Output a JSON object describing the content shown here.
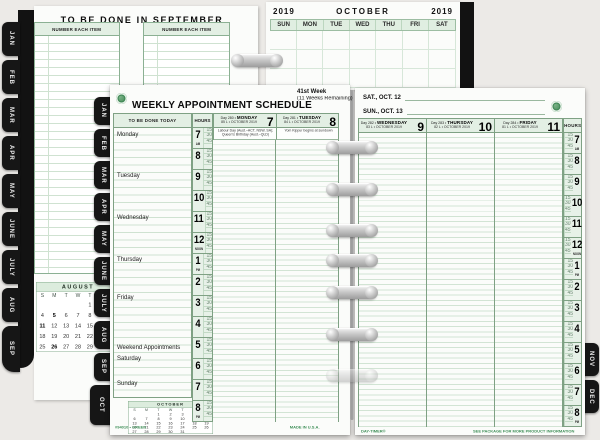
{
  "colors": {
    "accent_green": "#3a8a55",
    "line_green": "#cfe2d1",
    "border_green": "#7fa184",
    "header_green": "#e3efe4",
    "tab_black": "#161616"
  },
  "bg_left_page": {
    "title": "TO BE DONE IN SEPTEMBER",
    "column_header": "NUMBER EACH ITEM",
    "august_calendar": {
      "title": "AUGUST",
      "day_headers": [
        "S",
        "M",
        "T",
        "W",
        "T",
        "F",
        "S"
      ],
      "weeks": [
        [
          "",
          "",
          "",
          "",
          "1",
          "2",
          "3"
        ],
        [
          "4",
          "5",
          "6",
          "7",
          "8",
          "9",
          "10"
        ],
        [
          "11",
          "12",
          "13",
          "14",
          "15",
          "16",
          "17"
        ],
        [
          "18",
          "19",
          "20",
          "21",
          "22",
          "23",
          "24"
        ],
        [
          "25",
          "26",
          "27",
          "28",
          "29",
          "30",
          "31"
        ]
      ],
      "bold_days": [
        "5",
        "11",
        "26"
      ]
    }
  },
  "bg_right_page": {
    "year_left": "2019",
    "month": "OCTOBER",
    "year_right": "2019",
    "day_headers": [
      "SUN",
      "MON",
      "TUE",
      "WED",
      "THU",
      "FRI",
      "SAT"
    ]
  },
  "left_page": {
    "title": "WEEKLY APPOINTMENT SCHEDULE",
    "week_line1": "41st Week",
    "week_line2": "(11 Weeks Remaining)",
    "todo_header": "TO BE DONE TODAY",
    "hours_header": "HOURS",
    "todo_sections": [
      "Monday",
      "Tuesday",
      "Wednesday",
      "Thursday",
      "Friday",
      "Weekend Appointments",
      "Saturday",
      "Sunday"
    ],
    "day_columns": [
      {
        "day_no": "Day 280 •",
        "name": "MONDAY",
        "date": "7",
        "sub": "85 L • OCTOBER 2019",
        "notes": [
          "Labour Day (Aust.–ACT, NSW, SA);",
          "Queen’s Birthday (Aust.–QLD)"
        ]
      },
      {
        "day_no": "Day 281 •",
        "name": "TUESDAY",
        "date": "8",
        "sub": "84 L • OCTOBER 2019",
        "notes": [
          "Yom Kippur begins at sundown"
        ]
      }
    ],
    "october_calendar": {
      "title": "OCTOBER",
      "day_headers": [
        "S",
        "M",
        "T",
        "W",
        "T",
        "F",
        "S"
      ],
      "weeks": [
        [
          "",
          "",
          "1",
          "2",
          "3",
          "4",
          "5"
        ],
        [
          "6",
          "7",
          "8",
          "9",
          "10",
          "11",
          "12"
        ],
        [
          "13",
          "14",
          "15",
          "16",
          "17",
          "18",
          "19"
        ],
        [
          "20",
          "21",
          "22",
          "23",
          "24",
          "25",
          "26"
        ],
        [
          "27",
          "28",
          "29",
          "30",
          "31",
          "",
          ""
        ]
      ],
      "bold_days": []
    },
    "footer_left": "#94010 • GREEN",
    "footer_right": "MADE IN U.S.A."
  },
  "right_page": {
    "sat_label": "SAT., OCT. 12",
    "sun_label": "SUN., OCT. 13",
    "hours_header": "HOURS",
    "day_columns": [
      {
        "day_no": "Day 282 •",
        "name": "WEDNESDAY",
        "date": "9",
        "sub": "83 L • OCTOBER 2019",
        "notes": []
      },
      {
        "day_no": "Day 283 •",
        "name": "THURSDAY",
        "date": "10",
        "sub": "82 L • OCTOBER 2019",
        "notes": []
      },
      {
        "day_no": "Day 284 •",
        "name": "FRIDAY",
        "date": "11",
        "sub": "81 L • OCTOBER 2019",
        "notes": []
      }
    ],
    "footer_left": "DAY-TIMER®",
    "footer_right": "SEE PACKAGE FOR MORE PRODUCT INFORMATION"
  },
  "hours": {
    "blocks": [
      {
        "num": "7",
        "label": "AM"
      },
      {
        "num": "8",
        "label": ""
      },
      {
        "num": "9",
        "label": ""
      },
      {
        "num": "10",
        "label": ""
      },
      {
        "num": "11",
        "label": ""
      },
      {
        "num": "12",
        "label": "NOON"
      },
      {
        "num": "1",
        "label": "PM"
      },
      {
        "num": "2",
        "label": ""
      },
      {
        "num": "3",
        "label": ""
      },
      {
        "num": "4",
        "label": ""
      },
      {
        "num": "5",
        "label": ""
      },
      {
        "num": "6",
        "label": ""
      },
      {
        "num": "7",
        "label": ""
      },
      {
        "num": "8",
        "label": "PM"
      }
    ],
    "ticks": [
      "15",
      "30",
      "45"
    ]
  },
  "tabs": {
    "spine_months": [
      "JAN",
      "FEB",
      "MAR",
      "APR",
      "MAY",
      "JUNE",
      "JULY",
      "AUG",
      "SEP"
    ],
    "left_page_months": [
      "JAN",
      "FEB",
      "MAR",
      "APR",
      "MAY",
      "JUNE",
      "JULY",
      "AUG",
      "SEP",
      "OCT"
    ],
    "right_page_months": [
      "NOV",
      "DEC"
    ],
    "active_spine": "SEP",
    "active_left": "OCT"
  }
}
